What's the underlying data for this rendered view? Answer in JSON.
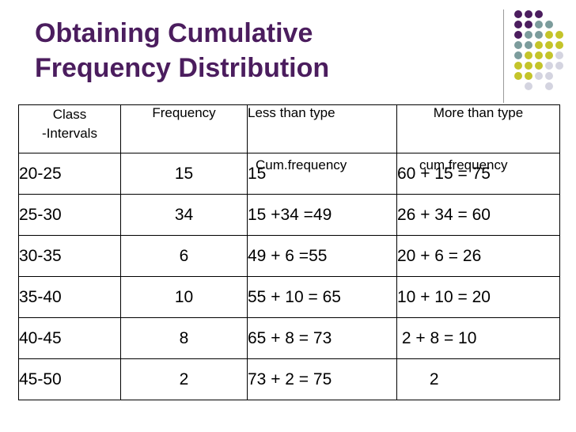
{
  "title": {
    "line1": "Obtaining Cumulative",
    "line2": "Frequency Distribution"
  },
  "accent_colors": {
    "title": "#4b1d5e",
    "dot_purple": "#4b1d5e",
    "dot_teal": "#7c9c9c",
    "dot_olive": "#c4c42a",
    "dot_gray": "#d4d4e0"
  },
  "table": {
    "headers": {
      "class_line1": "Class",
      "class_line2": "-Intervals",
      "frequency": "Frequency",
      "less": "Less than type",
      "less_sub": "Cum.frequency",
      "more": "More than type",
      "more_sub": "cum.frequency"
    },
    "rows": [
      {
        "class": "20-25",
        "freq": "15",
        "less": "15",
        "more": "60 + 15 = 75"
      },
      {
        "class": "25-30",
        "freq": "34",
        "less": "15 +34 =49",
        "more": "26 + 34 = 60"
      },
      {
        "class": "30-35",
        "freq": "6",
        "less": "49 + 6 =55",
        "more": "20 + 6 = 26"
      },
      {
        "class": "35-40",
        "freq": "10",
        "less": "55 + 10 = 65",
        "more": "10 + 10 = 20"
      },
      {
        "class": "40-45",
        "freq": "8",
        "less": "65 + 8 = 73",
        "more": " 2 + 8 = 10"
      },
      {
        "class": "45-50",
        "freq": "2",
        "less": "73 + 2 = 75",
        "more": "       2"
      }
    ]
  }
}
